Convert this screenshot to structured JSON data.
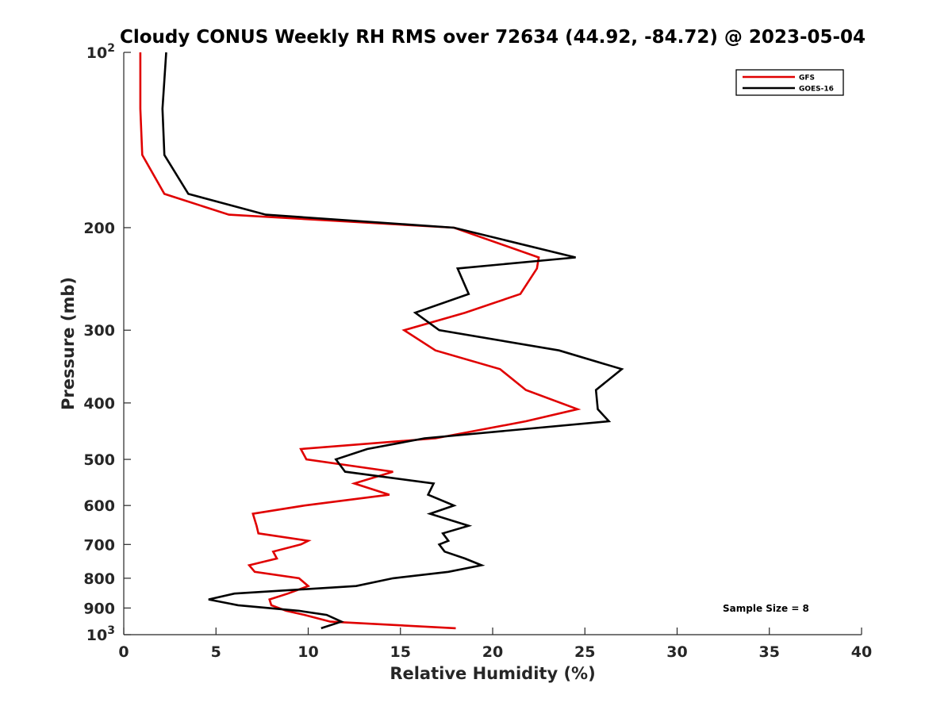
{
  "chart_data": {
    "type": "line",
    "title": "Cloudy CONUS Weekly RH RMS over 72634 (44.92, -84.72) @ 2023-05-04",
    "xlabel": "Relative Humidity (%)",
    "ylabel": "Pressure (mb)",
    "xlim": [
      0,
      40
    ],
    "ylim": [
      100,
      1000
    ],
    "y_scale": "log",
    "y_reversed": true,
    "grid": false,
    "x_ticks": [
      "0",
      "5",
      "10",
      "15",
      "20",
      "25",
      "30",
      "35",
      "40"
    ],
    "y_ticks": [
      {
        "value": 100,
        "base": "10",
        "exp": "2"
      },
      {
        "value": 200,
        "label": "200"
      },
      {
        "value": 300,
        "label": "300"
      },
      {
        "value": 400,
        "label": "400"
      },
      {
        "value": 500,
        "label": "500"
      },
      {
        "value": 600,
        "label": "600"
      },
      {
        "value": 700,
        "label": "700"
      },
      {
        "value": 800,
        "label": "800"
      },
      {
        "value": 900,
        "label": "900"
      },
      {
        "value": 1000,
        "base": "10",
        "exp": "3"
      }
    ],
    "legend_position": "top-right",
    "series": [
      {
        "name": "GFS",
        "color": "#e00000",
        "points": [
          [
            0.9,
            100
          ],
          [
            0.9,
            125
          ],
          [
            1.0,
            150
          ],
          [
            2.2,
            175
          ],
          [
            5.7,
            190
          ],
          [
            17.9,
            200
          ],
          [
            22.5,
            225
          ],
          [
            22.4,
            235
          ],
          [
            21.5,
            260
          ],
          [
            18.5,
            280
          ],
          [
            15.2,
            300
          ],
          [
            16.9,
            325
          ],
          [
            20.4,
            350
          ],
          [
            21.8,
            380
          ],
          [
            24.6,
            410
          ],
          [
            21.8,
            430
          ],
          [
            16.9,
            460
          ],
          [
            9.6,
            480
          ],
          [
            9.9,
            500
          ],
          [
            14.6,
            525
          ],
          [
            12.5,
            550
          ],
          [
            14.4,
            575
          ],
          [
            9.8,
            600
          ],
          [
            7.0,
            620
          ],
          [
            7.2,
            650
          ],
          [
            7.3,
            670
          ],
          [
            10.0,
            690
          ],
          [
            9.6,
            700
          ],
          [
            8.1,
            720
          ],
          [
            8.3,
            740
          ],
          [
            6.8,
            760
          ],
          [
            7.1,
            780
          ],
          [
            9.5,
            800
          ],
          [
            10.0,
            825
          ],
          [
            8.9,
            850
          ],
          [
            7.9,
            870
          ],
          [
            8.0,
            890
          ],
          [
            8.8,
            910
          ],
          [
            9.8,
            925
          ],
          [
            11.2,
            950
          ],
          [
            18.0,
            975
          ]
        ]
      },
      {
        "name": "GOES-16",
        "color": "#000000",
        "points": [
          [
            2.3,
            100
          ],
          [
            2.1,
            125
          ],
          [
            2.2,
            150
          ],
          [
            3.5,
            175
          ],
          [
            7.7,
            190
          ],
          [
            17.9,
            200
          ],
          [
            24.5,
            225
          ],
          [
            18.1,
            235
          ],
          [
            18.7,
            260
          ],
          [
            15.8,
            280
          ],
          [
            17.1,
            300
          ],
          [
            23.6,
            325
          ],
          [
            27.0,
            350
          ],
          [
            25.6,
            380
          ],
          [
            25.7,
            410
          ],
          [
            26.3,
            430
          ],
          [
            16.3,
            460
          ],
          [
            13.2,
            480
          ],
          [
            11.5,
            500
          ],
          [
            12.0,
            525
          ],
          [
            16.8,
            550
          ],
          [
            16.5,
            575
          ],
          [
            17.9,
            600
          ],
          [
            16.6,
            620
          ],
          [
            18.7,
            650
          ],
          [
            17.3,
            670
          ],
          [
            17.6,
            690
          ],
          [
            17.1,
            700
          ],
          [
            17.4,
            720
          ],
          [
            18.5,
            740
          ],
          [
            19.4,
            760
          ],
          [
            17.6,
            780
          ],
          [
            14.6,
            800
          ],
          [
            12.6,
            825
          ],
          [
            6.0,
            850
          ],
          [
            4.6,
            870
          ],
          [
            6.2,
            890
          ],
          [
            9.5,
            910
          ],
          [
            11.0,
            925
          ],
          [
            11.8,
            950
          ],
          [
            10.7,
            975
          ]
        ]
      }
    ],
    "annotation": "Sample Size = 8"
  }
}
